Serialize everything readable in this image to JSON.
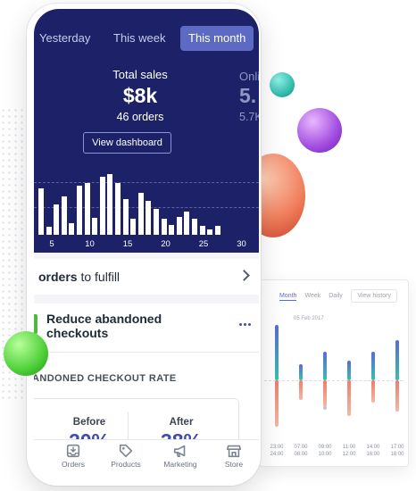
{
  "range_tabs": [
    "Yesterday",
    "This week",
    "This month"
  ],
  "active_tab": "This month",
  "stats": {
    "total_sales_label": "Total sales",
    "total_sales_value": "$8k",
    "orders_text": "46 orders",
    "secondary_label": "Onli",
    "secondary_value": "5.",
    "secondary_sub": "5.7K"
  },
  "view_dashboard_label": "View dashboard",
  "sales_chart": {
    "type": "bar",
    "x_ticks": [
      "5",
      "10",
      "15",
      "20",
      "25",
      "30"
    ],
    "values": [
      48,
      8,
      32,
      40,
      12,
      51,
      54,
      18,
      60,
      63,
      54,
      37,
      17,
      44,
      35,
      27,
      17,
      10,
      19,
      24,
      17,
      9,
      6,
      9
    ]
  },
  "fulfill": {
    "bold": "orders",
    "rest": " to fulfill"
  },
  "abandoned": {
    "title": "Reduce abandoned checkouts",
    "rate_title": "ANDONED CHECKOUT RATE",
    "before_label": "Before",
    "before_value": "20%",
    "after_label": "After",
    "after_value": "38%"
  },
  "bottom_nav": [
    "Orders",
    "Products",
    "Marketing",
    "Store"
  ],
  "history_card": {
    "tabs": [
      "Month",
      "Week",
      "Daily"
    ],
    "active_tab": "Month",
    "view_history_label": "View history",
    "date": "05 Feb 2017",
    "time_labels": [
      [
        "23:00",
        "24:00"
      ],
      [
        "07:00",
        "08:00"
      ],
      [
        "09:00",
        "10:00"
      ],
      [
        "11:00",
        "12:00"
      ],
      [
        "14:00",
        "16:00"
      ],
      [
        "17:00",
        "18:00"
      ]
    ],
    "up_values": [
      62,
      18,
      32,
      22,
      32,
      45
    ],
    "down_values": [
      52,
      22,
      30,
      40,
      25,
      35
    ]
  },
  "colors": {
    "hero_bg": "#1d2268",
    "active_tab": "#5c6ac4",
    "accent_green": "#50b83c",
    "value_blue": "#3f4eae"
  }
}
